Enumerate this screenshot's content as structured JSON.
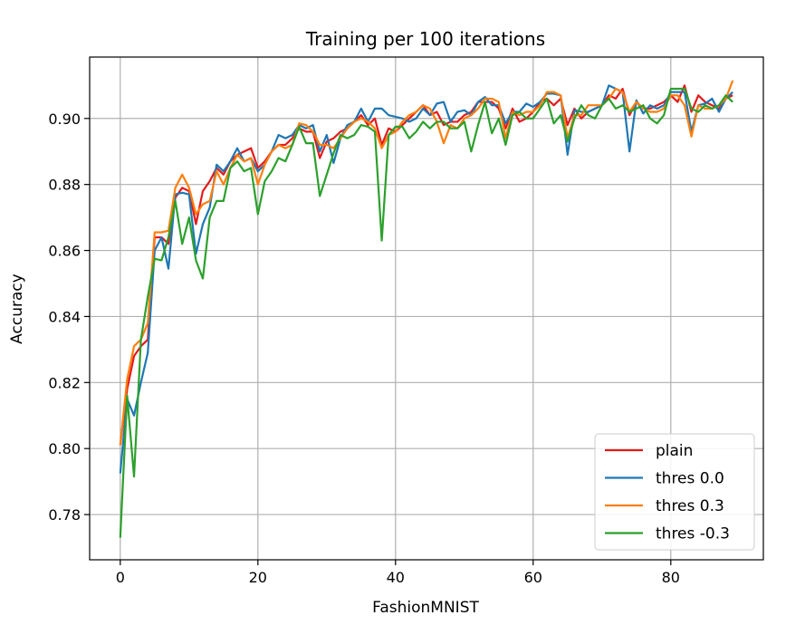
{
  "chart_data": {
    "type": "line",
    "title": "Training per 100 iterations",
    "xlabel": "FashionMNIST",
    "ylabel": "Accuracy",
    "xlim": [
      -4.45,
      93.45
    ],
    "ylim": [
      0.7663,
      0.9186
    ],
    "xticks": [
      0,
      20,
      40,
      60,
      80
    ],
    "yticks": [
      0.78,
      0.8,
      0.82,
      0.84,
      0.86,
      0.88,
      0.9
    ],
    "ytick_labels": [
      "0.78",
      "0.80",
      "0.82",
      "0.84",
      "0.86",
      "0.88",
      "0.90"
    ],
    "grid": true,
    "legend_position": "lower right",
    "x": [
      0,
      1,
      2,
      3,
      4,
      5,
      6,
      7,
      8,
      9,
      10,
      11,
      12,
      13,
      14,
      15,
      16,
      17,
      18,
      19,
      20,
      21,
      22,
      23,
      24,
      25,
      26,
      27,
      28,
      29,
      30,
      31,
      32,
      33,
      34,
      35,
      36,
      37,
      38,
      39,
      40,
      41,
      42,
      43,
      44,
      45,
      46,
      47,
      48,
      49,
      50,
      51,
      52,
      53,
      54,
      55,
      56,
      57,
      58,
      59,
      60,
      61,
      62,
      63,
      64,
      65,
      66,
      67,
      68,
      69,
      70,
      71,
      72,
      73,
      74,
      75,
      76,
      77,
      78,
      79,
      80,
      81,
      82,
      83,
      84,
      85,
      86,
      87,
      88,
      89
    ],
    "series": [
      {
        "name": "plain",
        "color": "#e41a1c",
        "values": [
          0.801,
          0.818,
          0.828,
          0.831,
          0.833,
          0.864,
          0.864,
          0.862,
          0.876,
          0.879,
          0.878,
          0.868,
          0.878,
          0.881,
          0.885,
          0.883,
          0.887,
          0.889,
          0.89,
          0.891,
          0.885,
          0.887,
          0.89,
          0.892,
          0.892,
          0.894,
          0.897,
          0.896,
          0.896,
          0.888,
          0.893,
          0.894,
          0.896,
          0.897,
          0.899,
          0.901,
          0.898,
          0.9,
          0.892,
          0.897,
          0.896,
          0.898,
          0.9,
          0.902,
          0.904,
          0.901,
          0.902,
          0.898,
          0.899,
          0.899,
          0.901,
          0.902,
          0.905,
          0.905,
          0.905,
          0.903,
          0.897,
          0.903,
          0.899,
          0.9,
          0.902,
          0.905,
          0.906,
          0.904,
          0.906,
          0.898,
          0.903,
          0.9,
          0.902,
          0.903,
          0.904,
          0.907,
          0.906,
          0.909,
          0.901,
          0.905,
          0.903,
          0.903,
          0.904,
          0.905,
          0.907,
          0.905,
          0.91,
          0.902,
          0.907,
          0.905,
          0.904,
          0.903,
          0.906,
          0.907
        ]
      },
      {
        "name": "thres 0.0",
        "color": "#1f77b4",
        "values": [
          0.7925,
          0.815,
          0.81,
          0.82,
          0.829,
          0.86,
          0.864,
          0.8545,
          0.877,
          0.8775,
          0.877,
          0.859,
          0.868,
          0.873,
          0.886,
          0.884,
          0.887,
          0.891,
          0.887,
          0.888,
          0.884,
          0.886,
          0.89,
          0.895,
          0.894,
          0.895,
          0.898,
          0.897,
          0.898,
          0.89,
          0.895,
          0.8865,
          0.894,
          0.898,
          0.899,
          0.903,
          0.899,
          0.903,
          0.903,
          0.901,
          0.9005,
          0.9,
          0.899,
          0.9,
          0.903,
          0.901,
          0.9045,
          0.905,
          0.899,
          0.902,
          0.9025,
          0.901,
          0.905,
          0.9065,
          0.904,
          0.904,
          0.8985,
          0.902,
          0.902,
          0.9045,
          0.9035,
          0.905,
          0.9075,
          0.9075,
          0.907,
          0.889,
          0.9025,
          0.902,
          0.902,
          0.903,
          0.904,
          0.91,
          0.909,
          0.908,
          0.89,
          0.9055,
          0.9015,
          0.904,
          0.903,
          0.904,
          0.908,
          0.908,
          0.908,
          0.896,
          0.904,
          0.9045,
          0.906,
          0.902,
          0.906,
          0.908
        ]
      },
      {
        "name": "thres 0.3",
        "color": "#ff7f0e",
        "values": [
          0.801,
          0.821,
          0.831,
          0.833,
          0.838,
          0.8655,
          0.8655,
          0.866,
          0.879,
          0.883,
          0.879,
          0.871,
          0.874,
          0.875,
          0.884,
          0.88,
          0.885,
          0.889,
          0.887,
          0.888,
          0.88,
          0.886,
          0.89,
          0.892,
          0.891,
          0.892,
          0.8985,
          0.898,
          0.896,
          0.892,
          0.892,
          0.891,
          0.894,
          0.897,
          0.899,
          0.9,
          0.899,
          0.897,
          0.891,
          0.895,
          0.896,
          0.899,
          0.901,
          0.902,
          0.904,
          0.903,
          0.899,
          0.8925,
          0.898,
          0.897,
          0.9,
          0.901,
          0.903,
          0.906,
          0.906,
          0.905,
          0.894,
          0.902,
          0.901,
          0.902,
          0.902,
          0.904,
          0.908,
          0.908,
          0.907,
          0.894,
          0.901,
          0.901,
          0.904,
          0.904,
          0.904,
          0.906,
          0.909,
          0.908,
          0.902,
          0.905,
          0.903,
          0.902,
          0.902,
          0.903,
          0.907,
          0.907,
          0.904,
          0.8945,
          0.904,
          0.903,
          0.903,
          0.904,
          0.906,
          0.9115
        ]
      },
      {
        "name": "thres -0.3",
        "color": "#2ca02c",
        "values": [
          0.773,
          0.816,
          0.7915,
          0.833,
          0.846,
          0.8575,
          0.857,
          0.864,
          0.875,
          0.862,
          0.87,
          0.857,
          0.8515,
          0.87,
          0.875,
          0.875,
          0.885,
          0.887,
          0.884,
          0.885,
          0.871,
          0.881,
          0.884,
          0.888,
          0.887,
          0.892,
          0.8975,
          0.8925,
          0.8925,
          0.8765,
          0.883,
          0.8895,
          0.895,
          0.894,
          0.895,
          0.898,
          0.8975,
          0.896,
          0.863,
          0.895,
          0.8975,
          0.8975,
          0.894,
          0.896,
          0.899,
          0.897,
          0.899,
          0.899,
          0.897,
          0.897,
          0.899,
          0.89,
          0.898,
          0.905,
          0.8955,
          0.9,
          0.892,
          0.901,
          0.902,
          0.9,
          0.9,
          0.903,
          0.906,
          0.8985,
          0.901,
          0.893,
          0.9,
          0.904,
          0.901,
          0.9,
          0.904,
          0.906,
          0.903,
          0.904,
          0.902,
          0.903,
          0.904,
          0.9,
          0.8985,
          0.901,
          0.909,
          0.909,
          0.909,
          0.903,
          0.902,
          0.904,
          0.903,
          0.904,
          0.907,
          0.905
        ]
      }
    ]
  }
}
